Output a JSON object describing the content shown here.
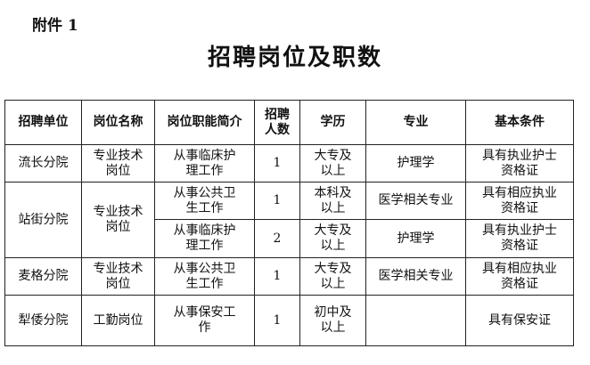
{
  "attachment_label": "附件 1",
  "title": "招聘岗位及职数",
  "table": {
    "headers": [
      "招聘单位",
      "岗位名称",
      "岗位职能简介",
      "招聘人数",
      "学历",
      "专业",
      "基本条件"
    ],
    "rows": [
      {
        "unit": "流长分院",
        "position": "专业技术岗位",
        "duty": "从事临床护理工作",
        "count": "1",
        "education": "大专及以上",
        "major": "护理学",
        "requirement": "具有执业护士资格证"
      },
      {
        "unit": "站街分院",
        "position": "专业技术岗位",
        "duty": "从事公共卫生工作",
        "count": "1",
        "education": "本科及以上",
        "major": "医学相关专业",
        "requirement": "具有相应执业资格证"
      },
      {
        "duty": "从事临床护理工作",
        "count": "2",
        "education": "大专及以上",
        "major": "护理学",
        "requirement": "具有执业护士资格证"
      },
      {
        "unit": "麦格分院",
        "position": "专业技术岗位",
        "duty": "从事公共卫生工作",
        "count": "1",
        "education": "大专及以上",
        "major": "医学相关专业",
        "requirement": "具有相应执业资格证"
      },
      {
        "unit": "犁倭分院",
        "position": "工勤岗位",
        "duty": "从事保安工作",
        "count": "1",
        "education": "初中及以上",
        "major": "",
        "requirement": "具有保安证"
      }
    ]
  }
}
